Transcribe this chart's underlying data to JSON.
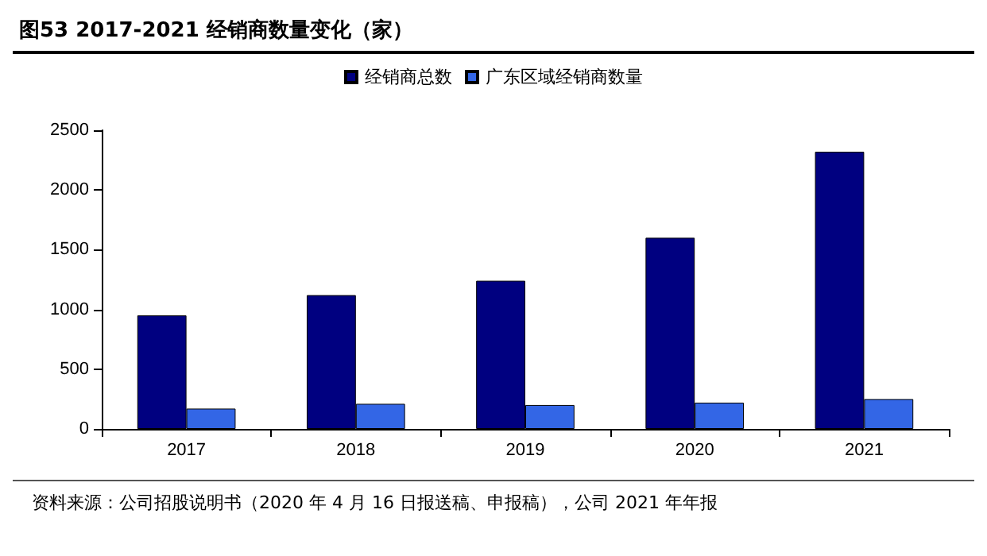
{
  "chart_data": {
    "type": "bar",
    "title": "图53 2017-2021 经销商数量变化（家）",
    "categories": [
      "2017",
      "2018",
      "2019",
      "2020",
      "2021"
    ],
    "series": [
      {
        "name": "经销商总数",
        "color": "#000080",
        "values": [
          950,
          1120,
          1240,
          1600,
          2320
        ]
      },
      {
        "name": "广东区域经销商数量",
        "color": "#3366e6",
        "values": [
          170,
          210,
          200,
          220,
          250
        ]
      }
    ],
    "ylim": [
      0,
      2500
    ],
    "yticks": [
      0,
      500,
      1000,
      1500,
      2000,
      2500
    ],
    "grid": false,
    "legend": "top",
    "annotations": [
      "资料来源：公司招股说明书（2020 年 4 月 16 日报送稿、申报稿），公司 2021 年年报"
    ]
  }
}
